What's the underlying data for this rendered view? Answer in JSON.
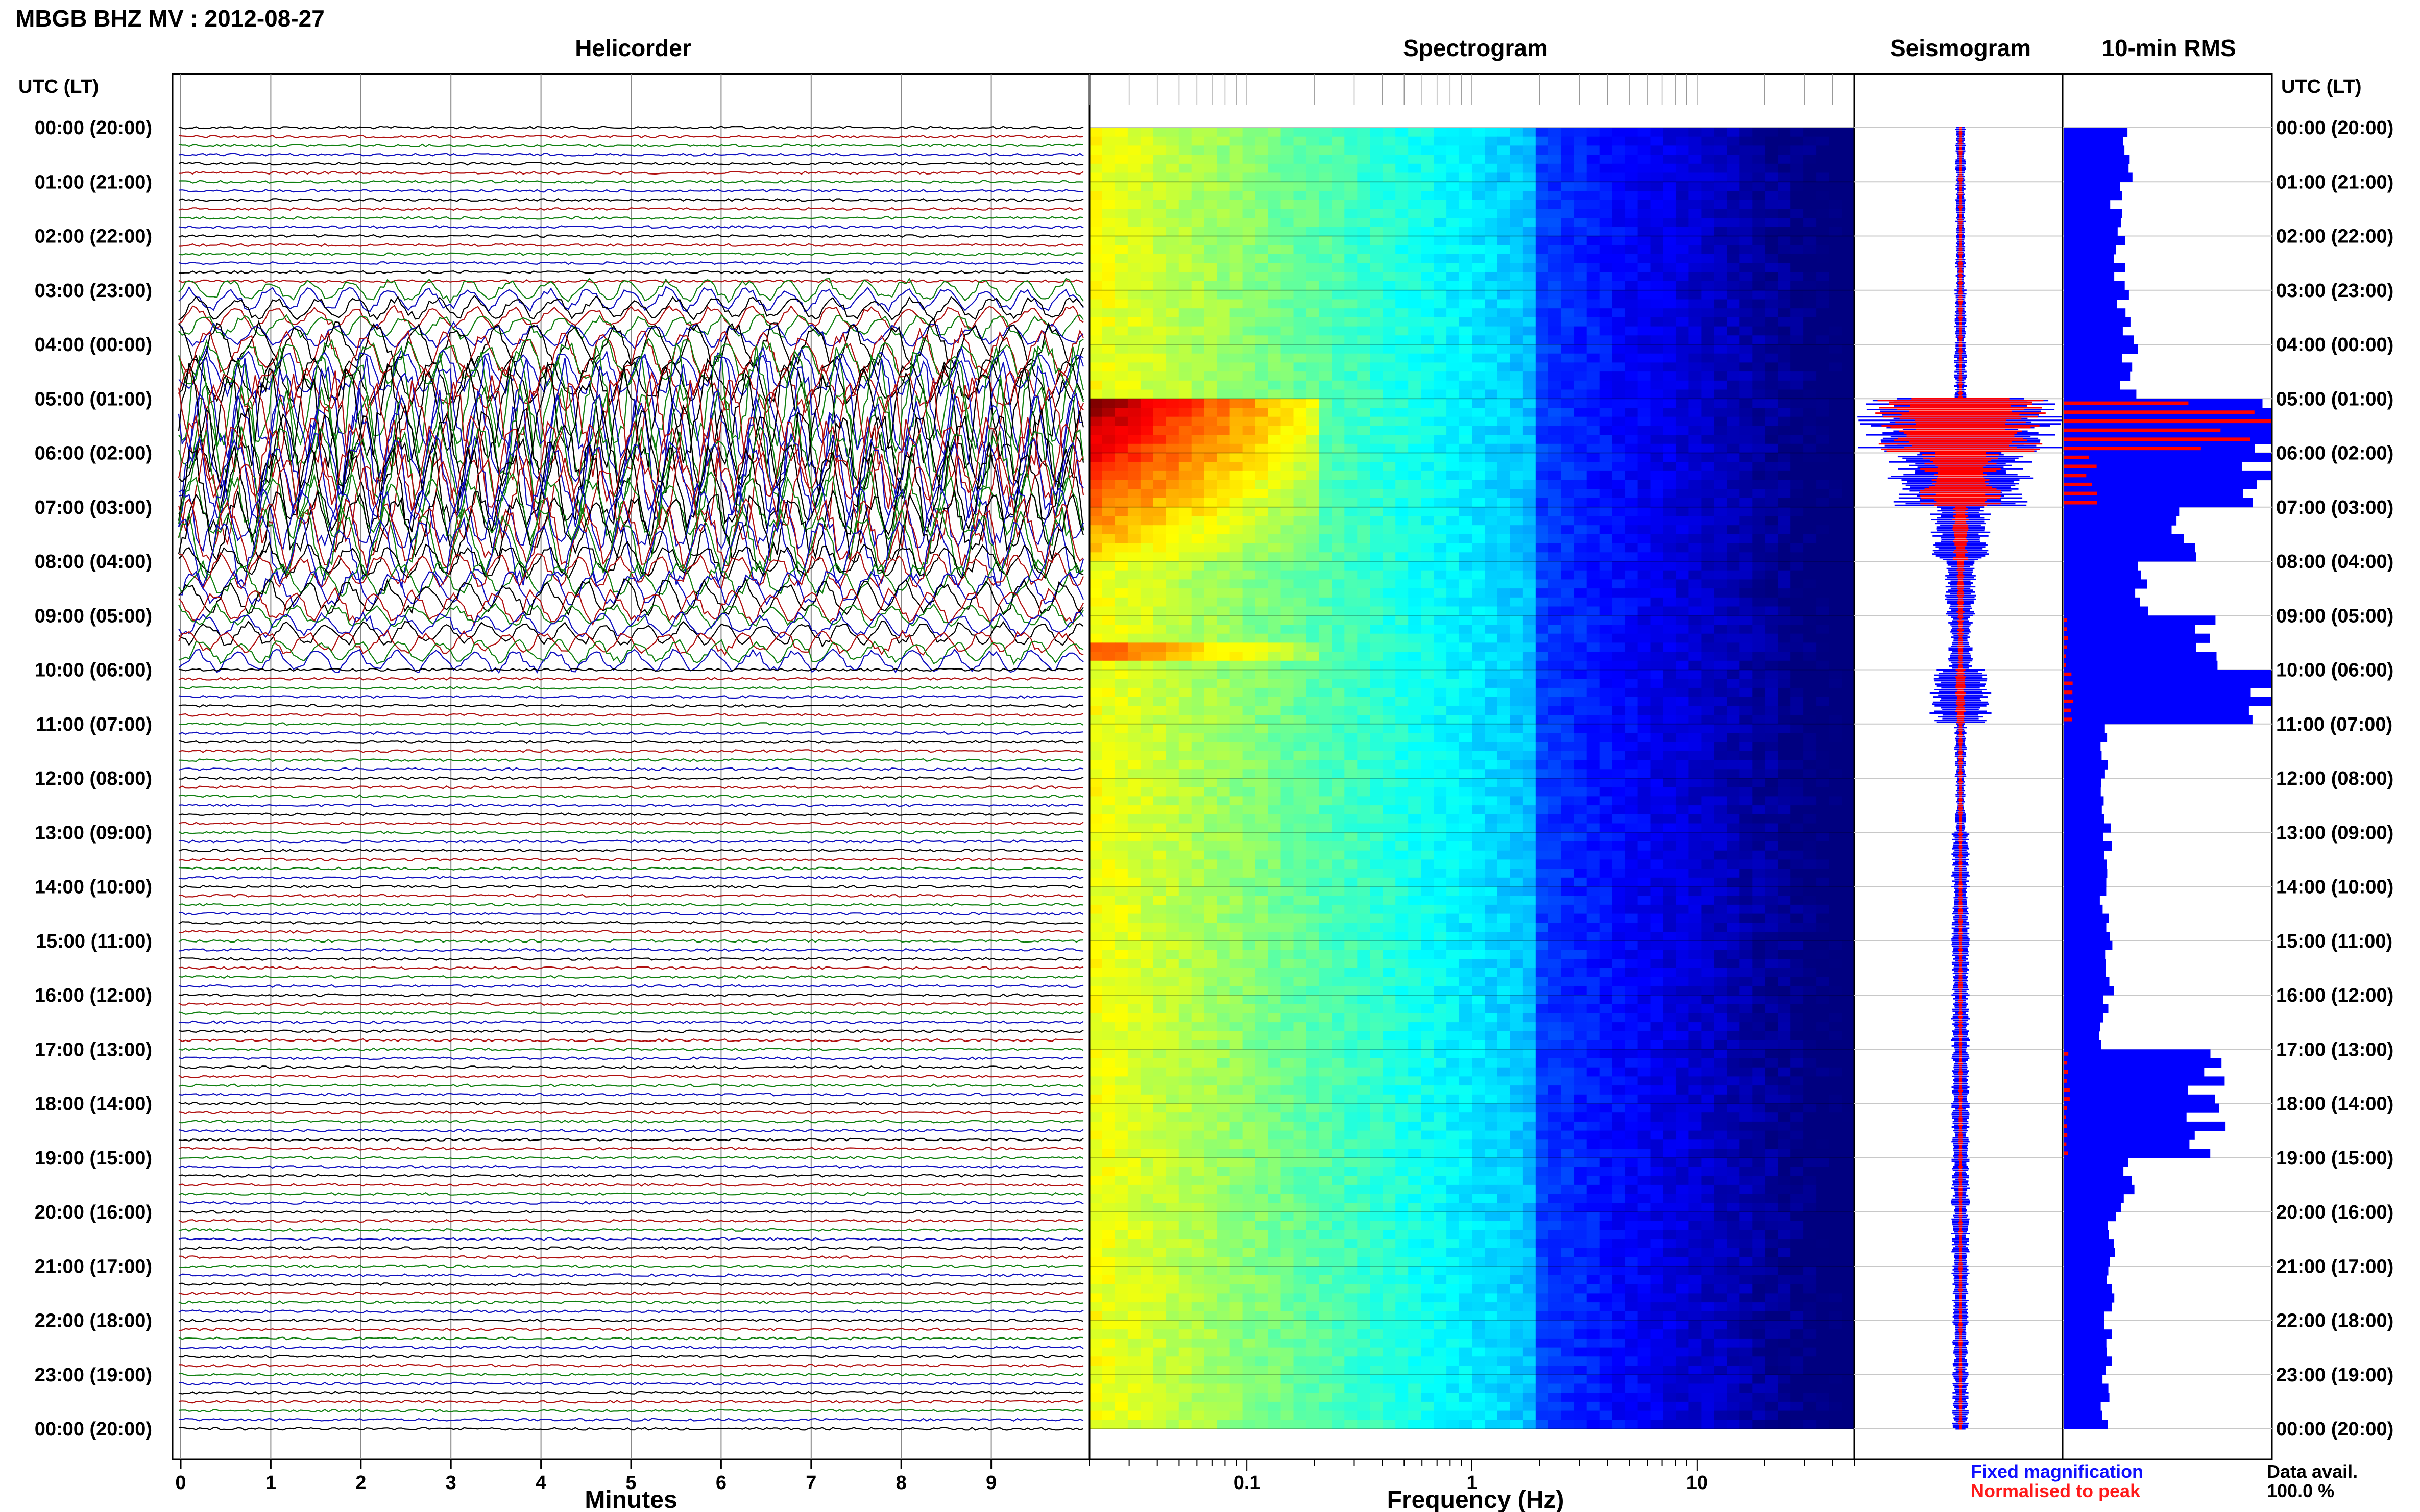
{
  "title": "MBGB BHZ MV : 2012-08-27",
  "left_axis_label": "UTC (LT)",
  "right_axis_label": "UTC (LT)",
  "panels": {
    "helicorder": "Helicorder",
    "spectrogram": "Spectrogram",
    "seismogram": "Seismogram",
    "rms": "10-min RMS"
  },
  "time_labels": [
    "00:00 (20:00)",
    "01:00 (21:00)",
    "02:00 (22:00)",
    "03:00 (23:00)",
    "04:00 (00:00)",
    "05:00 (01:00)",
    "06:00 (02:00)",
    "07:00 (03:00)",
    "08:00 (04:00)",
    "09:00 (05:00)",
    "10:00 (06:00)",
    "11:00 (07:00)",
    "12:00 (08:00)",
    "13:00 (09:00)",
    "14:00 (10:00)",
    "15:00 (11:00)",
    "16:00 (12:00)",
    "17:00 (13:00)",
    "18:00 (14:00)",
    "19:00 (15:00)",
    "20:00 (16:00)",
    "21:00 (17:00)",
    "22:00 (18:00)",
    "23:00 (19:00)",
    "00:00 (20:00)"
  ],
  "legend": {
    "fixed": "Fixed magnification",
    "normalised": "Normalised to peak",
    "fixed_color": "#1010ff",
    "normalised_color": "#ff1a1a",
    "avail_label": "Data avail.",
    "avail_value": "100.0 %"
  },
  "colors": {
    "trace_cycle": [
      "#000000",
      "#b01010",
      "#108010",
      "#1010c0"
    ],
    "rms_fixed": "#0000ff",
    "rms_norm": "#ff0000",
    "grid": "#c8c8c8"
  },
  "chart_data": [
    {
      "type": "line",
      "name": "helicorder",
      "title": "Helicorder",
      "xlabel": "Minutes",
      "x_ticks": [
        "0",
        "1",
        "2",
        "3",
        "4",
        "5",
        "6",
        "7",
        "8",
        "9"
      ],
      "xlim": [
        0,
        10
      ],
      "rows_per_hour": 6,
      "hours": 24,
      "amplitude_by_hour": [
        1,
        1,
        1,
        2,
        4,
        9,
        8,
        6,
        3,
        2,
        1,
        1,
        1,
        1,
        1,
        1,
        1.5,
        1.3,
        1.1,
        1,
        1,
        1,
        1,
        1
      ]
    },
    {
      "type": "heatmap",
      "name": "spectrogram",
      "title": "Spectrogram",
      "xlabel": "Frequency (Hz)",
      "x_scale": "log",
      "x_ticks": [
        "0.1",
        "1",
        "10"
      ],
      "xlim": [
        0.02,
        50
      ],
      "colormap": "jet",
      "strong_low_frequency_energy_utc": "05:00-08:00"
    },
    {
      "type": "area",
      "name": "seismogram",
      "title": "Seismogram",
      "series": [
        {
          "name": "Fixed magnification",
          "values": [
            0.05,
            0.05,
            0.05,
            0.06,
            0.06,
            1.0,
            0.7,
            0.3,
            0.15,
            0.12,
            0.3,
            0.06,
            0.05,
            0.09,
            0.09,
            0.09,
            0.09,
            0.09,
            0.09,
            0.09,
            0.09,
            0.09,
            0.08,
            0.08
          ]
        },
        {
          "name": "Normalised to peak",
          "values": [
            0.02,
            0.02,
            0.02,
            0.02,
            0.02,
            0.85,
            0.4,
            0.08,
            0.04,
            0.03,
            0.05,
            0.02,
            0.02,
            0.02,
            0.02,
            0.02,
            0.02,
            0.02,
            0.02,
            0.02,
            0.02,
            0.02,
            0.02,
            0.02
          ]
        }
      ]
    },
    {
      "type": "bar",
      "name": "10-min RMS",
      "title": "10-min RMS",
      "series": [
        {
          "name": "Fixed magnification",
          "values": [
            0.3,
            0.25,
            0.28,
            0.3,
            0.32,
            1.0,
            1.0,
            0.6,
            0.4,
            0.65,
            1.0,
            0.2,
            0.2,
            0.22,
            0.2,
            0.22,
            0.2,
            0.7,
            0.68,
            0.3,
            0.25,
            0.22,
            0.22,
            0.2
          ]
        },
        {
          "name": "Normalised to peak",
          "values": [
            0,
            0,
            0,
            0,
            0,
            0.95,
            0.2,
            0,
            0,
            0.02,
            0.06,
            0,
            0,
            0,
            0,
            0,
            0,
            0.03,
            0.02,
            0,
            0,
            0,
            0,
            0
          ]
        }
      ]
    }
  ]
}
